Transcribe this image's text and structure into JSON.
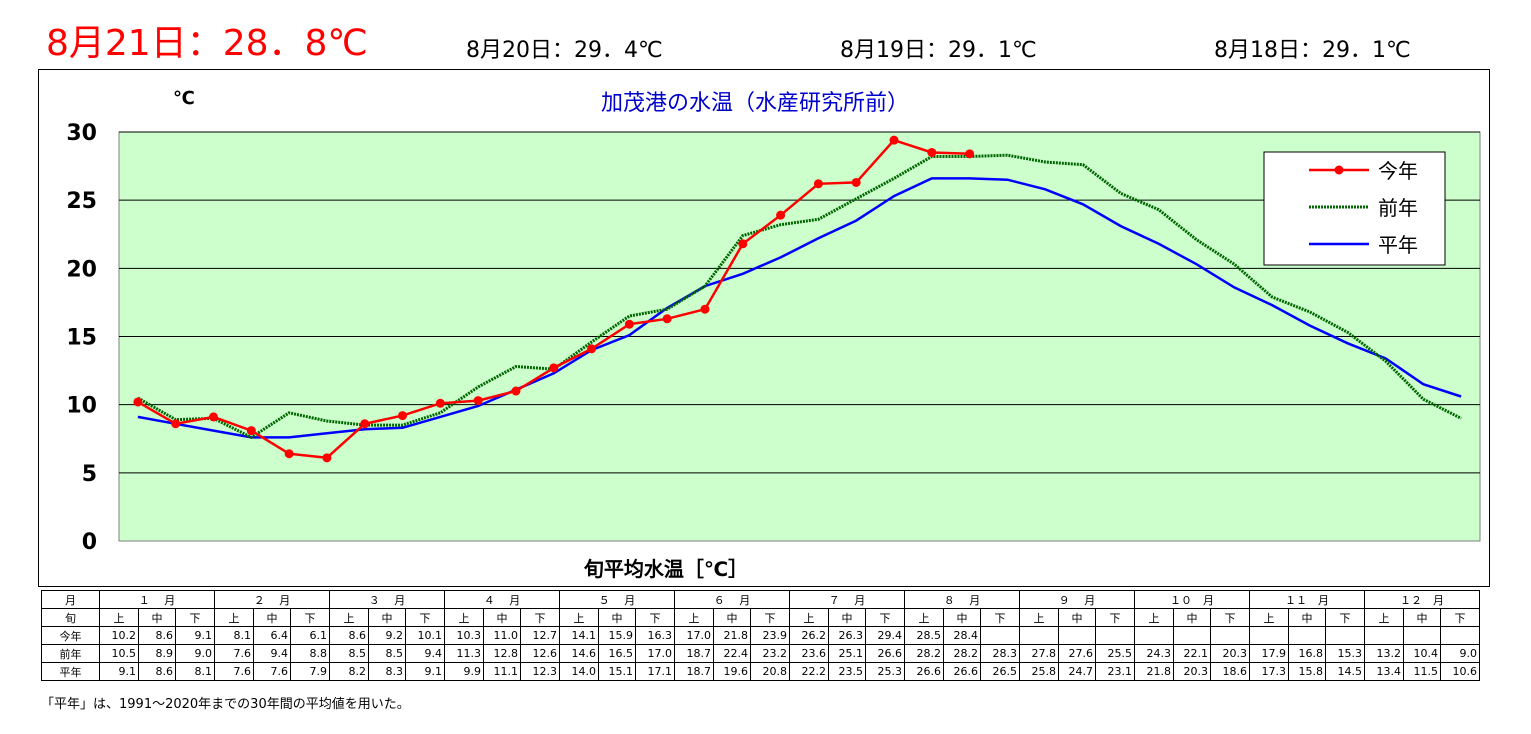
{
  "header": {
    "today": "8月21日：28．8℃",
    "prev1": "8月20日：29．4℃",
    "prev2": "8月19日：29．1℃",
    "prev3": "8月18日：29．1℃"
  },
  "chart_data": {
    "type": "line",
    "title": "加茂港の水温（水産研究所前）",
    "xlabel": "旬平均水温［℃］",
    "ylabel": "℃",
    "ylim": [
      0,
      30
    ],
    "yticks": [
      0,
      5,
      10,
      15,
      20,
      25,
      30
    ],
    "grid": true,
    "legend_position": "top-right",
    "background_color": "#ccffcc",
    "x_count": 36,
    "series": [
      {
        "name": "今年",
        "color": "#ff0000",
        "marker": "circle",
        "values": [
          10.2,
          8.6,
          9.1,
          8.1,
          6.4,
          6.1,
          8.6,
          9.2,
          10.1,
          10.3,
          11.0,
          12.7,
          14.1,
          15.9,
          16.3,
          17.0,
          21.8,
          23.9,
          26.2,
          26.3,
          29.4,
          28.5,
          28.4
        ]
      },
      {
        "name": "前年",
        "color": "#006600",
        "marker": "none",
        "values": [
          10.5,
          8.9,
          9.0,
          7.6,
          9.4,
          8.8,
          8.5,
          8.5,
          9.4,
          11.3,
          12.8,
          12.6,
          14.6,
          16.5,
          17.0,
          18.7,
          22.4,
          23.2,
          23.6,
          25.1,
          26.6,
          28.2,
          28.2,
          28.3,
          27.8,
          27.6,
          25.5,
          24.3,
          22.1,
          20.3,
          17.9,
          16.8,
          15.3,
          13.2,
          10.4,
          9.0
        ]
      },
      {
        "name": "平年",
        "color": "#0000ff",
        "marker": "none",
        "values": [
          9.1,
          8.6,
          8.1,
          7.6,
          7.6,
          7.9,
          8.2,
          8.3,
          9.1,
          9.9,
          11.1,
          12.3,
          14.0,
          15.1,
          17.1,
          18.7,
          19.6,
          20.8,
          22.2,
          23.5,
          25.3,
          26.6,
          26.6,
          26.5,
          25.8,
          24.7,
          23.1,
          21.8,
          20.3,
          18.6,
          17.3,
          15.8,
          14.5,
          13.4,
          11.5,
          10.6
        ]
      }
    ]
  },
  "table": {
    "month_header": "月",
    "period_header": "旬",
    "months": [
      "１　 月",
      "２　 月",
      "３　 月",
      "４　 月",
      "５　 月",
      "６　 月",
      "７　 月",
      "８　 月",
      "９　 月",
      "１０　月",
      "１１　月",
      "１２　月"
    ],
    "periods": [
      "上",
      "中",
      "下"
    ],
    "rows": [
      {
        "label": "今年",
        "values": [
          "10.2",
          "8.6",
          "9.1",
          "8.1",
          "6.4",
          "6.1",
          "8.6",
          "9.2",
          "10.1",
          "10.3",
          "11.0",
          "12.7",
          "14.1",
          "15.9",
          "16.3",
          "17.0",
          "21.8",
          "23.9",
          "26.2",
          "26.3",
          "29.4",
          "28.5",
          "28.4",
          "",
          "",
          "",
          "",
          "",
          "",
          "",
          "",
          "",
          "",
          "",
          "",
          ""
        ]
      },
      {
        "label": "前年",
        "values": [
          "10.5",
          "8.9",
          "9.0",
          "7.6",
          "9.4",
          "8.8",
          "8.5",
          "8.5",
          "9.4",
          "11.3",
          "12.8",
          "12.6",
          "14.6",
          "16.5",
          "17.0",
          "18.7",
          "22.4",
          "23.2",
          "23.6",
          "25.1",
          "26.6",
          "28.2",
          "28.2",
          "28.3",
          "27.8",
          "27.6",
          "25.5",
          "24.3",
          "22.1",
          "20.3",
          "17.9",
          "16.8",
          "15.3",
          "13.2",
          "10.4",
          "9.0"
        ]
      },
      {
        "label": "平年",
        "values": [
          "9.1",
          "8.6",
          "8.1",
          "7.6",
          "7.6",
          "7.9",
          "8.2",
          "8.3",
          "9.1",
          "9.9",
          "11.1",
          "12.3",
          "14.0",
          "15.1",
          "17.1",
          "18.7",
          "19.6",
          "20.8",
          "22.2",
          "23.5",
          "25.3",
          "26.6",
          "26.6",
          "26.5",
          "25.8",
          "24.7",
          "23.1",
          "21.8",
          "20.3",
          "18.6",
          "17.3",
          "15.8",
          "14.5",
          "13.4",
          "11.5",
          "10.6"
        ]
      }
    ]
  },
  "footnote": "「平年」は、1991～2020年までの30年間の平均値を用いた。"
}
